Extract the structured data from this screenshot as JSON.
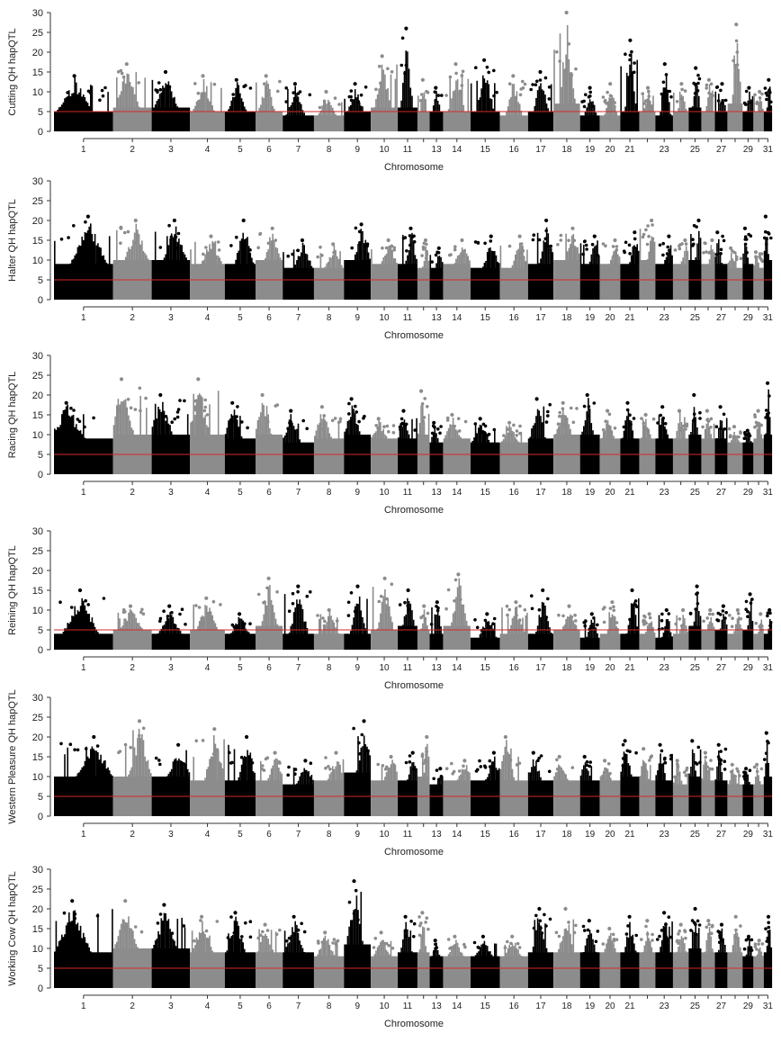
{
  "threshold_color": "#d62728",
  "colors": {
    "odd": "#000000",
    "even": "#8c8c8c"
  },
  "chart_data": [
    {
      "type": "scatter",
      "ylabel": "Cutting QH hapQTL",
      "xlabel": "Chromosome",
      "ylim": [
        0,
        30
      ],
      "yticks": [
        "0",
        "5",
        "10",
        "15",
        "20",
        "25",
        "30"
      ],
      "threshold": 5,
      "chromosomes": [
        "1",
        "2",
        "3",
        "4",
        "5",
        "6",
        "7",
        "8",
        "9",
        "10",
        "11",
        "12",
        "13",
        "14",
        "15",
        "16",
        "17",
        "18",
        "19",
        "20",
        "21",
        "22",
        "23",
        "24",
        "25",
        "26",
        "27",
        "28",
        "29",
        "30",
        "31"
      ],
      "xtick_labels": [
        "1",
        "2",
        "3",
        "4",
        "5",
        "6",
        "7",
        "8",
        "9",
        "10",
        "11",
        "13",
        "14",
        "15",
        "16",
        "17",
        "18",
        "19",
        "20",
        "21",
        "23",
        "25",
        "27",
        "29",
        "31"
      ],
      "chrom_peaks": [
        14,
        17,
        15,
        14,
        13,
        14,
        12,
        10,
        12,
        19,
        26,
        13,
        11,
        17,
        18,
        14,
        15,
        30,
        11,
        12,
        23,
        11,
        17,
        12,
        16,
        13,
        12,
        27,
        11,
        10,
        13
      ],
      "chrom_base": [
        5,
        6,
        6,
        5,
        5,
        5,
        4,
        4,
        5,
        6,
        6,
        5,
        5,
        5,
        5,
        4,
        5,
        7,
        4,
        4,
        5,
        5,
        4,
        5,
        6,
        5,
        5,
        7,
        5,
        5,
        5
      ]
    },
    {
      "type": "scatter",
      "ylabel": "Halter QH hapQTL",
      "xlabel": "Chromosome",
      "ylim": [
        0,
        30
      ],
      "yticks": [
        "0",
        "5",
        "10",
        "15",
        "20",
        "25",
        "30"
      ],
      "threshold": 5,
      "chromosomes": [
        "1",
        "2",
        "3",
        "4",
        "5",
        "6",
        "7",
        "8",
        "9",
        "10",
        "11",
        "12",
        "13",
        "14",
        "15",
        "16",
        "17",
        "18",
        "19",
        "20",
        "21",
        "22",
        "23",
        "24",
        "25",
        "26",
        "27",
        "28",
        "29",
        "30",
        "31"
      ],
      "xtick_labels": [
        "1",
        "2",
        "3",
        "4",
        "5",
        "6",
        "7",
        "8",
        "9",
        "10",
        "11",
        "13",
        "14",
        "15",
        "16",
        "17",
        "18",
        "19",
        "20",
        "21",
        "23",
        "25",
        "27",
        "29",
        "31"
      ],
      "chrom_peaks": [
        21,
        20,
        20,
        16,
        20,
        18,
        15,
        14,
        19,
        15,
        18,
        15,
        13,
        15,
        16,
        16,
        20,
        18,
        16,
        15,
        17,
        20,
        16,
        15,
        20,
        15,
        17,
        13,
        18,
        12,
        21
      ],
      "chrom_base": [
        9,
        10,
        10,
        9,
        9,
        10,
        8,
        8,
        10,
        9,
        9,
        8,
        8,
        9,
        8,
        8,
        9,
        10,
        9,
        9,
        9,
        10,
        9,
        9,
        10,
        9,
        9,
        8,
        9,
        8,
        10
      ]
    },
    {
      "type": "scatter",
      "ylabel": "Racing QH hapQTL",
      "xlabel": "Chromosome",
      "ylim": [
        0,
        30
      ],
      "yticks": [
        "0",
        "5",
        "10",
        "15",
        "20",
        "25",
        "30"
      ],
      "threshold": 5,
      "chromosomes": [
        "1",
        "2",
        "3",
        "4",
        "5",
        "6",
        "7",
        "8",
        "9",
        "10",
        "11",
        "12",
        "13",
        "14",
        "15",
        "16",
        "17",
        "18",
        "19",
        "20",
        "21",
        "22",
        "23",
        "24",
        "25",
        "26",
        "27",
        "28",
        "29",
        "30",
        "31"
      ],
      "xtick_labels": [
        "1",
        "2",
        "3",
        "4",
        "5",
        "6",
        "7",
        "8",
        "9",
        "10",
        "11",
        "13",
        "14",
        "15",
        "16",
        "17",
        "18",
        "19",
        "20",
        "21",
        "23",
        "25",
        "27",
        "29",
        "31"
      ],
      "chrom_peaks": [
        18,
        24,
        20,
        24,
        18,
        20,
        16,
        17,
        19,
        14,
        16,
        21,
        13,
        15,
        14,
        13,
        19,
        18,
        20,
        16,
        18,
        15,
        17,
        16,
        20,
        16,
        17,
        12,
        11,
        16,
        23
      ],
      "chrom_base": [
        9,
        10,
        10,
        10,
        9,
        10,
        8,
        9,
        10,
        9,
        9,
        10,
        8,
        9,
        8,
        8,
        9,
        10,
        10,
        9,
        9,
        9,
        9,
        9,
        10,
        9,
        9,
        8,
        8,
        9,
        10
      ]
    },
    {
      "type": "scatter",
      "ylabel": "Reining QH hapQTL",
      "xlabel": "Chromosome",
      "ylim": [
        0,
        30
      ],
      "yticks": [
        "0",
        "5",
        "10",
        "15",
        "20",
        "25",
        "30"
      ],
      "threshold": 5,
      "chromosomes": [
        "1",
        "2",
        "3",
        "4",
        "5",
        "6",
        "7",
        "8",
        "9",
        "10",
        "11",
        "12",
        "13",
        "14",
        "15",
        "16",
        "17",
        "18",
        "19",
        "20",
        "21",
        "22",
        "23",
        "24",
        "25",
        "26",
        "27",
        "28",
        "29",
        "30",
        "31"
      ],
      "xtick_labels": [
        "1",
        "2",
        "3",
        "4",
        "5",
        "6",
        "7",
        "8",
        "9",
        "10",
        "11",
        "13",
        "14",
        "15",
        "16",
        "17",
        "18",
        "19",
        "20",
        "21",
        "23",
        "25",
        "27",
        "29",
        "31"
      ],
      "chrom_peaks": [
        15,
        11,
        11,
        13,
        9,
        18,
        16,
        10,
        16,
        18,
        15,
        11,
        12,
        19,
        9,
        12,
        15,
        11,
        9,
        12,
        15,
        9,
        10,
        10,
        16,
        10,
        11,
        10,
        14,
        9,
        10
      ],
      "chrom_base": [
        4,
        5,
        4,
        5,
        4,
        6,
        4,
        4,
        4,
        5,
        6,
        5,
        4,
        6,
        3,
        4,
        4,
        5,
        3,
        4,
        4,
        4,
        3,
        4,
        6,
        5,
        5,
        4,
        5,
        4,
        4
      ]
    },
    {
      "type": "scatter",
      "ylabel": "Western Pleasure QH hapQTL",
      "xlabel": "Chromosome",
      "ylim": [
        0,
        30
      ],
      "yticks": [
        "0",
        "5",
        "10",
        "15",
        "20",
        "25",
        "30"
      ],
      "threshold": 5,
      "chromosomes": [
        "1",
        "2",
        "3",
        "4",
        "5",
        "6",
        "7",
        "8",
        "9",
        "10",
        "11",
        "12",
        "13",
        "14",
        "15",
        "16",
        "17",
        "18",
        "19",
        "20",
        "21",
        "22",
        "23",
        "24",
        "25",
        "26",
        "27",
        "28",
        "29",
        "30",
        "31"
      ],
      "xtick_labels": [
        "1",
        "2",
        "3",
        "4",
        "5",
        "6",
        "7",
        "8",
        "9",
        "10",
        "11",
        "13",
        "14",
        "15",
        "16",
        "17",
        "18",
        "19",
        "20",
        "21",
        "23",
        "25",
        "27",
        "29",
        "31"
      ],
      "chrom_peaks": [
        20,
        24,
        18,
        22,
        20,
        16,
        14,
        16,
        24,
        15,
        16,
        20,
        12,
        14,
        16,
        20,
        16,
        15,
        15,
        14,
        19,
        17,
        18,
        14,
        19,
        16,
        18,
        13,
        12,
        13,
        21
      ],
      "chrom_base": [
        10,
        10,
        10,
        9,
        9,
        9,
        8,
        9,
        11,
        9,
        9,
        10,
        8,
        9,
        9,
        9,
        9,
        9,
        9,
        9,
        10,
        9,
        9,
        8,
        10,
        9,
        9,
        8,
        8,
        8,
        10
      ]
    },
    {
      "type": "scatter",
      "ylabel": "Working Cow QH hapQTL",
      "xlabel": "Chromosome",
      "ylim": [
        0,
        30
      ],
      "yticks": [
        "0",
        "5",
        "10",
        "15",
        "20",
        "25",
        "30"
      ],
      "threshold": 5,
      "chromosomes": [
        "1",
        "2",
        "3",
        "4",
        "5",
        "6",
        "7",
        "8",
        "9",
        "10",
        "11",
        "12",
        "13",
        "14",
        "15",
        "16",
        "17",
        "18",
        "19",
        "20",
        "21",
        "22",
        "23",
        "24",
        "25",
        "26",
        "27",
        "28",
        "29",
        "30",
        "31"
      ],
      "xtick_labels": [
        "1",
        "2",
        "3",
        "4",
        "5",
        "6",
        "7",
        "8",
        "9",
        "10",
        "11",
        "13",
        "14",
        "15",
        "16",
        "17",
        "18",
        "19",
        "20",
        "21",
        "23",
        "25",
        "27",
        "29",
        "31"
      ],
      "chrom_peaks": [
        22,
        22,
        21,
        18,
        19,
        16,
        18,
        14,
        27,
        14,
        18,
        19,
        12,
        13,
        13,
        13,
        20,
        20,
        17,
        15,
        18,
        17,
        19,
        16,
        20,
        17,
        16,
        18,
        13,
        12,
        18
      ],
      "chrom_base": [
        9,
        10,
        10,
        9,
        9,
        9,
        9,
        8,
        11,
        8,
        9,
        9,
        8,
        8,
        8,
        8,
        9,
        9,
        9,
        9,
        9,
        9,
        9,
        9,
        10,
        9,
        9,
        9,
        8,
        8,
        9
      ]
    }
  ]
}
